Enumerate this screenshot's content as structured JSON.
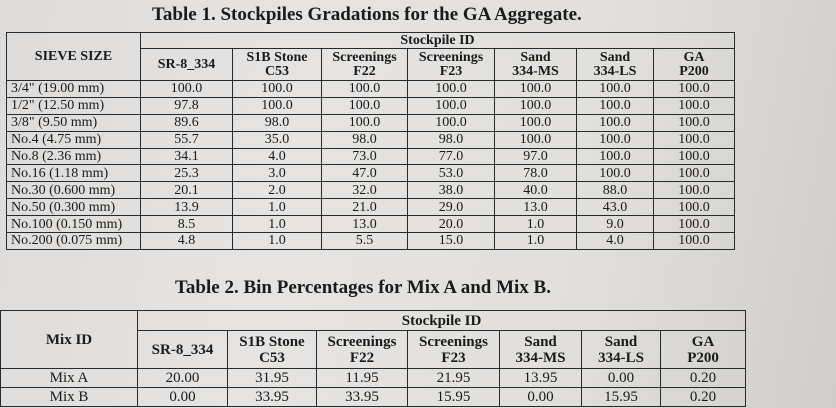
{
  "table1": {
    "title": "Table 1. Stockpiles Gradations for the GA Aggregate.",
    "row_header": "SIEVE SIZE",
    "group_header": "Stockpile ID",
    "columns": [
      {
        "line1": "SR-8_334",
        "line2": ""
      },
      {
        "line1": "S1B Stone",
        "line2": "C53"
      },
      {
        "line1": "Screenings",
        "line2": "F22"
      },
      {
        "line1": "Screenings",
        "line2": "F23"
      },
      {
        "line1": "Sand",
        "line2": "334-MS"
      },
      {
        "line1": "Sand",
        "line2": "334-LS"
      },
      {
        "line1": "GA",
        "line2": "P200"
      }
    ],
    "rows": [
      {
        "sieve": "3/4\" (19.00 mm)",
        "values": [
          "100.0",
          "100.0",
          "100.0",
          "100.0",
          "100.0",
          "100.0",
          "100.0"
        ]
      },
      {
        "sieve": "1/2\" (12.50 mm)",
        "values": [
          "97.8",
          "100.0",
          "100.0",
          "100.0",
          "100.0",
          "100.0",
          "100.0"
        ]
      },
      {
        "sieve": "3/8\" (9.50 mm)",
        "values": [
          "89.6",
          "98.0",
          "100.0",
          "100.0",
          "100.0",
          "100.0",
          "100.0"
        ]
      },
      {
        "sieve": "No.4 (4.75 mm)",
        "values": [
          "55.7",
          "35.0",
          "98.0",
          "98.0",
          "100.0",
          "100.0",
          "100.0"
        ]
      },
      {
        "sieve": "No.8 (2.36 mm)",
        "values": [
          "34.1",
          "4.0",
          "73.0",
          "77.0",
          "97.0",
          "100.0",
          "100.0"
        ]
      },
      {
        "sieve": "No.16 (1.18 mm)",
        "values": [
          "25.3",
          "3.0",
          "47.0",
          "53.0",
          "78.0",
          "100.0",
          "100.0"
        ]
      },
      {
        "sieve": "No.30 (0.600 mm)",
        "values": [
          "20.1",
          "2.0",
          "32.0",
          "38.0",
          "40.0",
          "88.0",
          "100.0"
        ]
      },
      {
        "sieve": "No.50 (0.300 mm)",
        "values": [
          "13.9",
          "1.0",
          "21.0",
          "29.0",
          "13.0",
          "43.0",
          "100.0"
        ]
      },
      {
        "sieve": "No.100 (0.150 mm)",
        "values": [
          "8.5",
          "1.0",
          "13.0",
          "20.0",
          "1.0",
          "9.0",
          "100.0"
        ]
      },
      {
        "sieve": "No.200 (0.075 mm)",
        "values": [
          "4.8",
          "1.0",
          "5.5",
          "15.0",
          "1.0",
          "4.0",
          "100.0"
        ]
      }
    ]
  },
  "table2": {
    "title": "Table 2. Bin Percentages for Mix A and Mix B.",
    "row_header": "Mix ID",
    "group_header": "Stockpile ID",
    "columns": [
      {
        "line1": "SR-8_334",
        "line2": ""
      },
      {
        "line1": "S1B Stone",
        "line2": "C53"
      },
      {
        "line1": "Screenings",
        "line2": "F22"
      },
      {
        "line1": "Screenings",
        "line2": "F23"
      },
      {
        "line1": "Sand",
        "line2": "334-MS"
      },
      {
        "line1": "Sand",
        "line2": "334-LS"
      },
      {
        "line1": "GA",
        "line2": "P200"
      }
    ],
    "rows": [
      {
        "mix": "Mix A",
        "values": [
          "20.00",
          "31.95",
          "11.95",
          "21.95",
          "13.95",
          "0.00",
          "0.20"
        ]
      },
      {
        "mix": "Mix B",
        "values": [
          "0.00",
          "33.95",
          "33.95",
          "15.95",
          "0.00",
          "15.95",
          "0.20"
        ]
      }
    ]
  }
}
